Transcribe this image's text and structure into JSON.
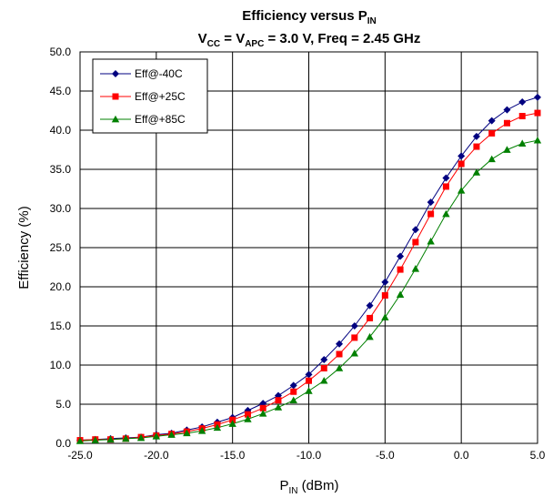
{
  "chart_data": {
    "type": "line",
    "title": {
      "line1_main": "Efficiency versus P",
      "line1_sub": "IN",
      "line2_vcc_main": "V",
      "line2_vcc_sub": "CC",
      "line2_eq1": " = V",
      "line2_apc_sub": "APC",
      "line2_rest": " = 3.0 V, Freq = 2.45 GHz"
    },
    "xlabel": {
      "main": "P",
      "sub": "IN",
      "rest": " (dBm)"
    },
    "ylabel": "Efficiency (%)",
    "xlim": [
      -25,
      5
    ],
    "ylim": [
      0,
      50
    ],
    "x_ticks": [
      "-25.0",
      "-20.0",
      "-15.0",
      "-10.0",
      "-5.0",
      "0.0",
      "5.0"
    ],
    "y_ticks": [
      "0.0",
      "5.0",
      "10.0",
      "15.0",
      "20.0",
      "25.0",
      "30.0",
      "35.0",
      "40.0",
      "45.0",
      "50.0"
    ],
    "grid": true,
    "legend_position": "top-left",
    "x": [
      -25,
      -24,
      -23,
      -22,
      -21,
      -20,
      -19,
      -18,
      -17,
      -16,
      -15,
      -14,
      -13,
      -12,
      -11,
      -10,
      -9,
      -8,
      -7,
      -6,
      -5,
      -4,
      -3,
      -2,
      -1,
      0,
      1,
      2,
      3,
      4,
      5
    ],
    "series": [
      {
        "name": "Eff@-40C",
        "color": "#000080",
        "marker": "diamond",
        "values": [
          0.4,
          0.5,
          0.6,
          0.7,
          0.8,
          1.1,
          1.3,
          1.7,
          2.1,
          2.7,
          3.3,
          4.2,
          5.1,
          6.1,
          7.4,
          8.8,
          10.7,
          12.7,
          15.0,
          17.6,
          20.6,
          23.9,
          27.3,
          30.8,
          33.9,
          36.7,
          39.2,
          41.2,
          42.6,
          43.6,
          44.2
        ]
      },
      {
        "name": "Eff@+25C",
        "color": "#FF0000",
        "marker": "square",
        "values": [
          0.4,
          0.5,
          0.5,
          0.6,
          0.8,
          1.0,
          1.2,
          1.5,
          1.9,
          2.4,
          3.0,
          3.7,
          4.5,
          5.5,
          6.6,
          8.0,
          9.6,
          11.4,
          13.5,
          16.0,
          18.9,
          22.2,
          25.7,
          29.3,
          32.8,
          35.7,
          37.9,
          39.6,
          40.9,
          41.8,
          42.2
        ]
      },
      {
        "name": "Eff@+85C",
        "color": "#008000",
        "marker": "triangle",
        "values": [
          0.3,
          0.4,
          0.5,
          0.6,
          0.7,
          0.9,
          1.1,
          1.3,
          1.6,
          2.0,
          2.5,
          3.1,
          3.8,
          4.6,
          5.5,
          6.7,
          8.0,
          9.6,
          11.5,
          13.6,
          16.1,
          19.0,
          22.3,
          25.8,
          29.3,
          32.3,
          34.6,
          36.3,
          37.5,
          38.3,
          38.7
        ]
      }
    ]
  }
}
